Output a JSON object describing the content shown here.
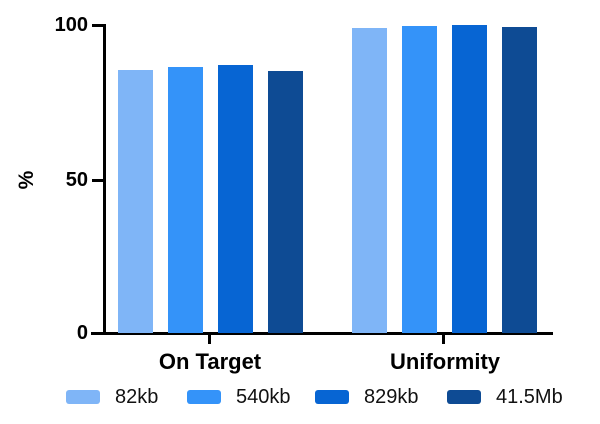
{
  "chart_data": {
    "type": "bar",
    "title": "",
    "categories": [
      "On Target",
      "Uniformity"
    ],
    "series": [
      {
        "name": "82kb",
        "color": "#7FB5F7",
        "values": [
          85.4,
          99.0
        ]
      },
      {
        "name": "540kb",
        "color": "#3493F9",
        "values": [
          86.3,
          99.8
        ]
      },
      {
        "name": "829kb",
        "color": "#0765D3",
        "values": [
          87.0,
          100.0
        ]
      },
      {
        "name": "41.5Mb",
        "color": "#0E4B94",
        "values": [
          85.2,
          99.5
        ]
      }
    ],
    "ylabel": "%",
    "ylim": [
      0,
      100
    ],
    "yticks": [
      0,
      50,
      100
    ],
    "grid": false,
    "legend_position": "bottom",
    "axis_color": "#000000"
  }
}
